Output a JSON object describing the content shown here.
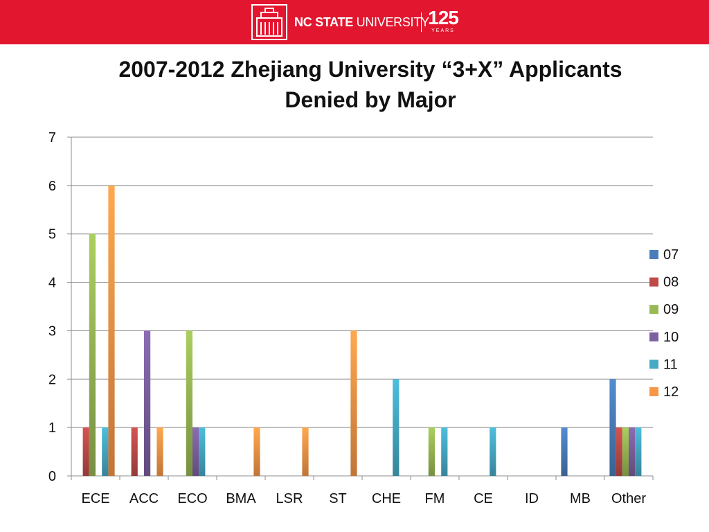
{
  "header": {
    "brand_bold": "NC STATE",
    "brand_regular": " UNIVERSITY",
    "anniversary_number": "125",
    "anniversary_word": "YEARS",
    "banner_color": "#e2162f"
  },
  "chart_data": {
    "type": "bar",
    "title": "2007-2012 Zhejiang University “3+X” Applicants Denied by Major",
    "title_line1": "2007-2012 Zhejiang University “3+X” Applicants",
    "title_line2": "Denied by Major",
    "xlabel": "",
    "ylabel": "",
    "ylim": [
      0,
      7
    ],
    "yticks": [
      "0",
      "1",
      "2",
      "3",
      "4",
      "5",
      "6",
      "7"
    ],
    "grid": true,
    "legend_position": "right",
    "categories": [
      "ECE",
      "ACC",
      "ECO",
      "BMA",
      "LSR",
      "ST",
      "CHE",
      "FM",
      "CE",
      "ID",
      "MB",
      "Other"
    ],
    "series": [
      {
        "name": "07",
        "color": "#4a7ebb",
        "values": [
          0,
          0,
          0,
          0,
          0,
          0,
          0,
          0,
          0,
          0,
          1,
          2
        ]
      },
      {
        "name": "08",
        "color": "#be4b48",
        "values": [
          1,
          1,
          0,
          0,
          0,
          0,
          0,
          0,
          0,
          0,
          0,
          1
        ]
      },
      {
        "name": "09",
        "color": "#98b954",
        "values": [
          5,
          0,
          3,
          0,
          0,
          0,
          0,
          1,
          0,
          0,
          0,
          1
        ]
      },
      {
        "name": "10",
        "color": "#7d60a0",
        "values": [
          0,
          3,
          1,
          0,
          0,
          0,
          0,
          0,
          0,
          0,
          0,
          1
        ]
      },
      {
        "name": "11",
        "color": "#46aac5",
        "values": [
          1,
          0,
          1,
          0,
          0,
          0,
          2,
          1,
          1,
          0,
          0,
          1
        ]
      },
      {
        "name": "12",
        "color": "#f79646",
        "values": [
          6,
          1,
          0,
          1,
          1,
          3,
          0,
          0,
          0,
          0,
          0,
          0
        ]
      }
    ]
  }
}
